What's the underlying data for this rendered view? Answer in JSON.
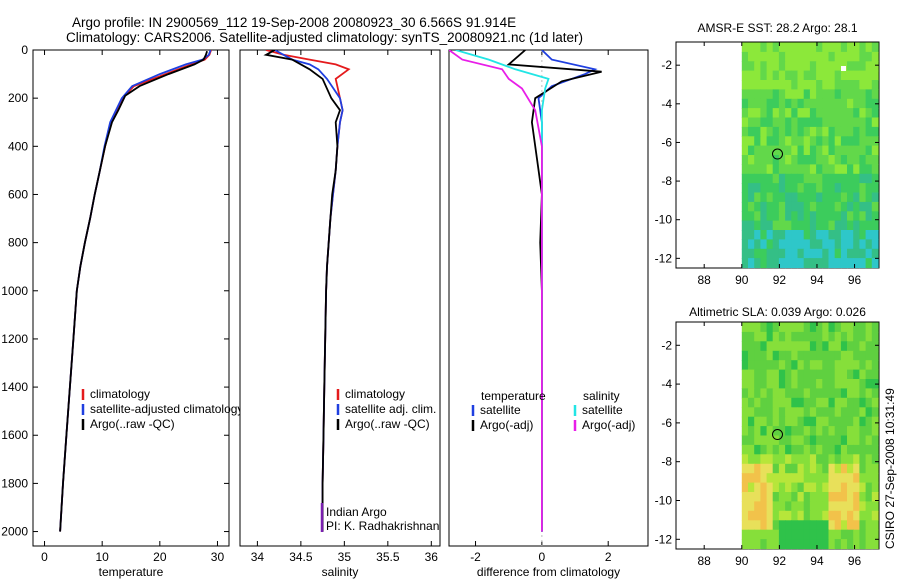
{
  "header": {
    "line1": "Argo profile: IN 2900569_112 19-Sep-2008 20080923_30 6.566S 91.914E",
    "line2": "Climatology: CARS2006. Satellite-adjusted climatology: synTS_20080921.nc (1d later)"
  },
  "side_note": "CSIRO 27-Sep-2008 10:31:49",
  "colors": {
    "climatology": "#e41a1c",
    "satellite": "#1f3fe0",
    "argo": "#000000",
    "salinity_satellite": "#22e5e5",
    "salinity_argo": "#e81ee8",
    "marker_purple": "#7a1fb0"
  },
  "chart_data": [
    {
      "type": "line",
      "name": "temperature",
      "xlabel": "temperature",
      "xlim": [
        -2,
        32
      ],
      "xticks": [
        0,
        10,
        20,
        30
      ],
      "ylim": [
        2060,
        0
      ],
      "yticks": [
        0,
        200,
        400,
        600,
        800,
        1000,
        1200,
        1400,
        1600,
        1800,
        2000
      ],
      "legend": [
        "climatology",
        "satellite-adjusted climatology",
        "Argo(..raw -QC)"
      ],
      "legend_position": "lower-right",
      "series": [
        {
          "name": "climatology",
          "color": "#e41a1c",
          "x": [
            28.9,
            28.6,
            27.8,
            25.5,
            21.0,
            15.5,
            13.5,
            12.5,
            11.5,
            10.5,
            9.6,
            8.7,
            7.9,
            7.0,
            6.2,
            5.6,
            5.0,
            4.4,
            3.8,
            3.2,
            2.7
          ],
          "y": [
            0,
            20,
            40,
            60,
            100,
            150,
            200,
            250,
            300,
            400,
            500,
            600,
            700,
            800,
            900,
            1000,
            1200,
            1400,
            1600,
            1800,
            2000
          ]
        },
        {
          "name": "satellite-adjusted climatology",
          "color": "#1f3fe0",
          "x": [
            28.8,
            28.5,
            27.4,
            24.5,
            20.0,
            15.2,
            13.4,
            12.4,
            11.4,
            10.4,
            9.6,
            8.7,
            7.9,
            7.0,
            6.2,
            5.6,
            5.0,
            4.4,
            3.8,
            3.2,
            2.7
          ],
          "y": [
            0,
            20,
            40,
            60,
            100,
            150,
            200,
            250,
            300,
            400,
            500,
            600,
            700,
            800,
            900,
            1000,
            1200,
            1400,
            1600,
            1800,
            2000
          ]
        },
        {
          "name": "Argo(..raw -QC)",
          "color": "#000000",
          "x": [
            28.2,
            28.0,
            27.6,
            26.0,
            21.5,
            16.5,
            14.0,
            12.8,
            11.7,
            10.5,
            9.6,
            8.7,
            7.9,
            7.0,
            6.2,
            5.6,
            5.0,
            4.4,
            3.8,
            3.2,
            2.7
          ],
          "y": [
            5,
            20,
            40,
            60,
            100,
            150,
            190,
            250,
            300,
            400,
            500,
            600,
            700,
            800,
            900,
            1000,
            1200,
            1400,
            1600,
            1800,
            2000
          ]
        }
      ]
    },
    {
      "type": "line",
      "name": "salinity",
      "xlabel": "salinity",
      "xlim": [
        33.8,
        36.1
      ],
      "xticks": [
        34,
        34.5,
        35,
        35.5,
        36
      ],
      "ylim": [
        2060,
        0
      ],
      "legend": [
        "climatology",
        "satellite adj. clim.",
        "Argo(..raw -QC)"
      ],
      "legend_position": "lower-right",
      "annotations": [
        "Indian Argo",
        "PI: K. Radhakrishnan"
      ],
      "series": [
        {
          "name": "climatology",
          "color": "#e41a1c",
          "x": [
            34.1,
            34.3,
            34.6,
            34.9,
            35.05,
            34.9,
            34.95,
            34.98,
            34.95,
            34.92,
            34.9,
            34.87,
            34.84,
            34.82,
            34.8,
            34.79,
            34.78,
            34.77,
            34.76,
            34.75,
            34.75
          ],
          "y": [
            0,
            20,
            40,
            60,
            80,
            120,
            200,
            250,
            300,
            400,
            500,
            600,
            700,
            800,
            900,
            1000,
            1200,
            1400,
            1600,
            1800,
            2000
          ]
        },
        {
          "name": "satellite adj. clim.",
          "color": "#1f3fe0",
          "x": [
            34.2,
            34.3,
            34.4,
            34.6,
            34.7,
            34.8,
            34.95,
            34.98,
            34.95,
            34.92,
            34.9,
            34.87,
            34.84,
            34.82,
            34.8,
            34.79,
            34.78,
            34.77,
            34.76,
            34.75,
            34.75
          ],
          "y": [
            0,
            20,
            40,
            60,
            80,
            120,
            200,
            250,
            300,
            400,
            500,
            600,
            700,
            800,
            900,
            1000,
            1200,
            1400,
            1600,
            1800,
            2000
          ]
        },
        {
          "name": "Argo(..raw -QC)",
          "color": "#000000",
          "x": [
            34.2,
            34.1,
            34.4,
            34.5,
            34.6,
            34.75,
            34.85,
            34.95,
            34.9,
            34.92,
            34.9,
            34.86,
            34.84,
            34.82,
            34.8,
            34.79,
            34.78,
            34.77,
            34.76,
            34.75,
            34.75
          ],
          "y": [
            0,
            20,
            40,
            60,
            80,
            120,
            200,
            250,
            300,
            400,
            500,
            600,
            700,
            800,
            900,
            1000,
            1200,
            1400,
            1600,
            1800,
            2000
          ]
        }
      ]
    },
    {
      "type": "line",
      "name": "difference",
      "xlabel": "difference from climatology",
      "xlim": [
        -2.8,
        3.2
      ],
      "xticks": [
        -2,
        0,
        2
      ],
      "ylim": [
        2060,
        0
      ],
      "legend_position": "lower-right",
      "legend": {
        "temperature_title": "temperature",
        "salinity_title": "salinity",
        "temperature_items": [
          "satellite",
          "Argo(-adj)"
        ],
        "salinity_items": [
          "satellite",
          "Argo(-adj)"
        ]
      },
      "series": [
        {
          "name": "temperature satellite",
          "color": "#1f3fe0",
          "x": [
            0,
            0.3,
            1.6,
            1.3,
            0.3,
            -0.1,
            0,
            0,
            0,
            0,
            0,
            0,
            0,
            0
          ],
          "y": [
            0,
            40,
            80,
            100,
            150,
            200,
            300,
            500,
            700,
            900,
            1000,
            1400,
            1800,
            2000
          ]
        },
        {
          "name": "temperature Argo(-adj)",
          "color": "#000000",
          "x": [
            -0.5,
            -1.0,
            1.8,
            0.6,
            -0.2,
            -0.3,
            -0.15,
            0,
            -0.05,
            0,
            0,
            0,
            0,
            0
          ],
          "y": [
            0,
            60,
            90,
            130,
            200,
            300,
            450,
            600,
            800,
            1000,
            1200,
            1500,
            1800,
            2000
          ]
        },
        {
          "name": "salinity satellite",
          "color": "#22e5e5",
          "x": [
            -2.6,
            -1.6,
            -0.8,
            0.2,
            0.1,
            0,
            0,
            0,
            0,
            0,
            0,
            0
          ],
          "y": [
            0,
            40,
            80,
            120,
            160,
            250,
            400,
            700,
            1000,
            1400,
            1800,
            2000
          ]
        },
        {
          "name": "salinity Argo(-adj)",
          "color": "#e81ee8",
          "x": [
            -2.8,
            -2.4,
            -1.2,
            -1.0,
            -0.6,
            -0.2,
            0,
            0,
            0,
            0,
            0,
            0
          ],
          "y": [
            0,
            40,
            80,
            120,
            160,
            250,
            400,
            700,
            1000,
            1400,
            1800,
            2000
          ]
        }
      ]
    },
    {
      "type": "heatmap",
      "name": "sst-map",
      "title": "AMSR-E SST: 28.2 Argo: 28.1",
      "xlim": [
        86.5,
        97.3
      ],
      "ylim": [
        -12.5,
        -0.8
      ],
      "xticks": [
        88,
        90,
        92,
        94,
        96
      ],
      "yticks": [
        -2,
        -4,
        -6,
        -8,
        -10,
        -12
      ],
      "data_start_lon": 90,
      "colors": [
        "#8ce83a",
        "#62d84a",
        "#3ccc5c",
        "#34bf86",
        "#2ec7c9",
        "#ffffff"
      ],
      "marker": {
        "lon": 91.9,
        "lat": -6.6
      }
    },
    {
      "type": "heatmap",
      "name": "sla-map",
      "title": "Altimetric SLA: 0.039 Argo: 0.026",
      "xlim": [
        86.5,
        97.3
      ],
      "ylim": [
        -12.5,
        -0.8
      ],
      "xticks": [
        88,
        90,
        92,
        94,
        96
      ],
      "yticks": [
        -2,
        -4,
        -6,
        -8,
        -10,
        -12
      ],
      "data_start_lon": 90,
      "colors": [
        "#2fc24a",
        "#5fd040",
        "#86df3a",
        "#b7e63a",
        "#e8e05a",
        "#f2c24a"
      ],
      "marker": {
        "lon": 91.9,
        "lat": -6.6
      }
    }
  ]
}
